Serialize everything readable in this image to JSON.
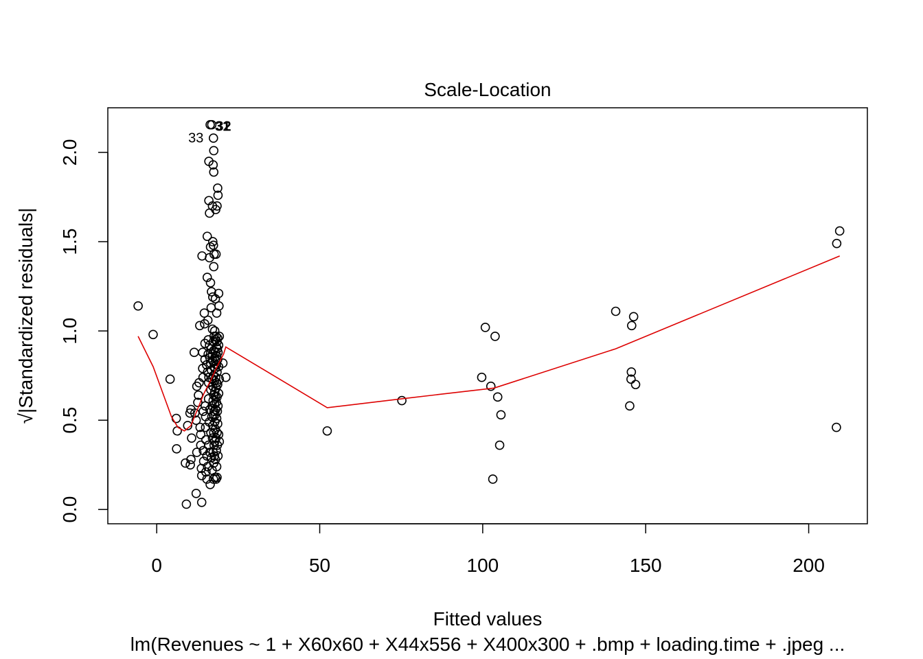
{
  "chart_data": {
    "type": "scatter",
    "title": "Scale-Location",
    "xlabel": "Fitted values",
    "ylabel": "√|Standardized residuals|",
    "subtitle": "lm(Revenues ~ 1 + X60x60 + X44x556 + X400x300 + .bmp + loading.time + .jpeg ...",
    "xlim": [
      -15,
      218
    ],
    "ylim": [
      -0.08,
      2.25
    ],
    "xticks": [
      "0",
      "50",
      "100",
      "150",
      "200"
    ],
    "xtick_values": [
      0,
      50,
      100,
      150,
      200
    ],
    "yticks": [
      "0.0",
      "0.5",
      "1.0",
      "1.5",
      "2.0"
    ],
    "ytick_values": [
      0,
      0.5,
      1,
      1.5,
      2
    ],
    "grid": false,
    "point_color": "#000000",
    "smooth_color": "#dd0000",
    "labeled_points": [
      {
        "label": "33",
        "x": 15.2,
        "y": 2.09
      },
      {
        "label": "31",
        "x": 16.6,
        "y": 2.155
      },
      {
        "label": "32",
        "x": 16.9,
        "y": 2.155
      }
    ],
    "points": [
      [
        -5.7,
        1.14
      ],
      [
        -1.1,
        0.98
      ],
      [
        4.1,
        0.73
      ],
      [
        6,
        0.51
      ],
      [
        6.3,
        0.44
      ],
      [
        6.1,
        0.34
      ],
      [
        8.8,
        0.26
      ],
      [
        9.1,
        0.03
      ],
      [
        9.5,
        0.47
      ],
      [
        10.2,
        0.54
      ],
      [
        10.5,
        0.56
      ],
      [
        10.3,
        0.25
      ],
      [
        10.5,
        0.28
      ],
      [
        10.7,
        0.4
      ],
      [
        11.5,
        0.88
      ],
      [
        11.7,
        0.54
      ],
      [
        12.1,
        0.5
      ],
      [
        12.3,
        0.69
      ],
      [
        12.3,
        0.32
      ],
      [
        12.1,
        0.09
      ],
      [
        12.6,
        0.6
      ],
      [
        12.8,
        0.64
      ],
      [
        13,
        0.71
      ],
      [
        13.2,
        1.03
      ],
      [
        13.3,
        0.46
      ],
      [
        13.5,
        0.42
      ],
      [
        13.5,
        0.36
      ],
      [
        13.7,
        0.23
      ],
      [
        13.8,
        0.19
      ],
      [
        13.8,
        0.04
      ],
      [
        13.9,
        1.42
      ],
      [
        14.1,
        0.88
      ],
      [
        14.1,
        0.79
      ],
      [
        14.2,
        0.74
      ],
      [
        14.3,
        0.55
      ],
      [
        14.3,
        0.33
      ],
      [
        14.4,
        0.27
      ],
      [
        14.6,
        1.1
      ],
      [
        14.7,
        1.04
      ],
      [
        14.8,
        0.93
      ],
      [
        14.8,
        0.84
      ],
      [
        14.9,
        0.58
      ],
      [
        15,
        0.52
      ],
      [
        15,
        0.46
      ],
      [
        15.1,
        0.39
      ],
      [
        15.1,
        0.21
      ],
      [
        15.3,
        0.81
      ],
      [
        15.4,
        0.3
      ],
      [
        15.4,
        0.17
      ],
      [
        15.5,
        1.53
      ],
      [
        15.5,
        1.3
      ],
      [
        15.6,
        0.77
      ],
      [
        15.6,
        0.24
      ],
      [
        15.7,
        1.06
      ],
      [
        15.8,
        0.95
      ],
      [
        15.8,
        0.87
      ],
      [
        15.9,
        0.71
      ],
      [
        15.9,
        0.62
      ],
      [
        15.9,
        0.36
      ],
      [
        16,
        1.95
      ],
      [
        16,
        1.73
      ],
      [
        16,
        0.74
      ],
      [
        16.1,
        0.49
      ],
      [
        16.2,
        1.66
      ],
      [
        16.2,
        1.41
      ],
      [
        16.2,
        0.92
      ],
      [
        16.3,
        0.85
      ],
      [
        16.3,
        0.56
      ],
      [
        16.3,
        0.32
      ],
      [
        16.4,
        2.155
      ],
      [
        16.4,
        0.14
      ],
      [
        16.5,
        1.47
      ],
      [
        16.5,
        1.27
      ],
      [
        16.5,
        0.82
      ],
      [
        16.6,
        0.67
      ],
      [
        16.6,
        0.43
      ],
      [
        16.7,
        1.13
      ],
      [
        16.7,
        0.9
      ],
      [
        16.8,
        1.22
      ],
      [
        16.8,
        0.78
      ],
      [
        16.8,
        0.29
      ],
      [
        16.9,
        2.155
      ],
      [
        16.9,
        0.52
      ],
      [
        17,
        0.73
      ],
      [
        17,
        0.58
      ],
      [
        17,
        0.22
      ],
      [
        17.1,
        1.7
      ],
      [
        17.1,
        1.01
      ],
      [
        17.1,
        0.87
      ],
      [
        17.1,
        0.4
      ],
      [
        17.2,
        1.5
      ],
      [
        17.2,
        1.19
      ],
      [
        17.2,
        0.69
      ],
      [
        17.2,
        0.47
      ],
      [
        17.3,
        1.93
      ],
      [
        17.3,
        0.83
      ],
      [
        17.3,
        0.61
      ],
      [
        17.3,
        0.32
      ],
      [
        17.4,
        2.08
      ],
      [
        17.4,
        1.48
      ],
      [
        17.4,
        0.94
      ],
      [
        17.4,
        0.75
      ],
      [
        17.4,
        0.53
      ],
      [
        17.4,
        0.17
      ],
      [
        17.5,
        2.01
      ],
      [
        17.5,
        1.89
      ],
      [
        17.5,
        1.36
      ],
      [
        17.5,
        0.89
      ],
      [
        17.5,
        0.64
      ],
      [
        17.5,
        0.43
      ],
      [
        17.5,
        0.26
      ],
      [
        17.6,
        1.43
      ],
      [
        17.6,
        0.97
      ],
      [
        17.6,
        0.8
      ],
      [
        17.6,
        0.55
      ],
      [
        17.6,
        0.36
      ],
      [
        17.7,
        0.72
      ],
      [
        17.7,
        0.59
      ],
      [
        17.7,
        0.3
      ],
      [
        17.8,
        1.0
      ],
      [
        17.8,
        0.85
      ],
      [
        17.8,
        0.66
      ],
      [
        17.8,
        0.49
      ],
      [
        17.8,
        0.38
      ],
      [
        17.9,
        0.79
      ],
      [
        17.9,
        0.53
      ],
      [
        17.9,
        0.18
      ],
      [
        18,
        1.18
      ],
      [
        18,
        0.95
      ],
      [
        18,
        0.88
      ],
      [
        18,
        0.63
      ],
      [
        18,
        0.45
      ],
      [
        18,
        0.28
      ],
      [
        18.1,
        1.68
      ],
      [
        18.1,
        0.83
      ],
      [
        18.1,
        0.74
      ],
      [
        18.1,
        0.56
      ],
      [
        18.2,
        1.43
      ],
      [
        18.2,
        0.97
      ],
      [
        18.2,
        0.68
      ],
      [
        18.2,
        0.4
      ],
      [
        18.2,
        0.17
      ],
      [
        18.3,
        0.91
      ],
      [
        18.3,
        0.81
      ],
      [
        18.3,
        0.6
      ],
      [
        18.3,
        0.33
      ],
      [
        18.4,
        1.1
      ],
      [
        18.4,
        0.86
      ],
      [
        18.4,
        0.71
      ],
      [
        18.4,
        0.51
      ],
      [
        18.4,
        0.24
      ],
      [
        18.5,
        1.7
      ],
      [
        18.5,
        0.94
      ],
      [
        18.5,
        0.77
      ],
      [
        18.5,
        0.63
      ],
      [
        18.5,
        0.43
      ],
      [
        18.5,
        0.18
      ],
      [
        18.6,
        0.9
      ],
      [
        18.6,
        0.55
      ],
      [
        18.6,
        0.36
      ],
      [
        18.7,
        1.8
      ],
      [
        18.7,
        0.96
      ],
      [
        18.7,
        0.84
      ],
      [
        18.7,
        0.7
      ],
      [
        18.7,
        0.48
      ],
      [
        18.8,
        1.76
      ],
      [
        18.8,
        0.88
      ],
      [
        18.8,
        0.58
      ],
      [
        18.8,
        0.3
      ],
      [
        19,
        1.21
      ],
      [
        19,
        0.92
      ],
      [
        19,
        0.8
      ],
      [
        19,
        0.65
      ],
      [
        19,
        0.42
      ],
      [
        19.1,
        1.14
      ],
      [
        19.2,
        0.97
      ],
      [
        19.2,
        0.73
      ],
      [
        19.2,
        0.38
      ],
      [
        20.3,
        0.82
      ],
      [
        21.2,
        0.74
      ],
      [
        52.3,
        0.44
      ],
      [
        75.2,
        0.61
      ],
      [
        99.7,
        0.74
      ],
      [
        100.8,
        1.02
      ],
      [
        102.5,
        0.69
      ],
      [
        103.1,
        0.17
      ],
      [
        103.8,
        0.97
      ],
      [
        104.6,
        0.63
      ],
      [
        105.2,
        0.36
      ],
      [
        105.6,
        0.53
      ],
      [
        140.8,
        1.11
      ],
      [
        145.1,
        0.58
      ],
      [
        145.5,
        0.73
      ],
      [
        145.6,
        0.77
      ],
      [
        145.7,
        1.03
      ],
      [
        146.3,
        1.08
      ],
      [
        146.9,
        0.7
      ],
      [
        208.5,
        0.46
      ],
      [
        208.6,
        1.49
      ],
      [
        209.5,
        1.56
      ]
    ],
    "smooth_line": [
      [
        -5.7,
        0.97
      ],
      [
        -1.1,
        0.8
      ],
      [
        2.5,
        0.62
      ],
      [
        4.5,
        0.52
      ],
      [
        6.5,
        0.46
      ],
      [
        8.5,
        0.44
      ],
      [
        10.5,
        0.47
      ],
      [
        12.5,
        0.56
      ],
      [
        14.5,
        0.65
      ],
      [
        16.5,
        0.72
      ],
      [
        18.5,
        0.8
      ],
      [
        20.5,
        0.87
      ],
      [
        21.2,
        0.91
      ],
      [
        52.3,
        0.57
      ],
      [
        75.2,
        0.62
      ],
      [
        103.5,
        0.68
      ],
      [
        140.8,
        0.9
      ],
      [
        209.5,
        1.42
      ]
    ]
  }
}
